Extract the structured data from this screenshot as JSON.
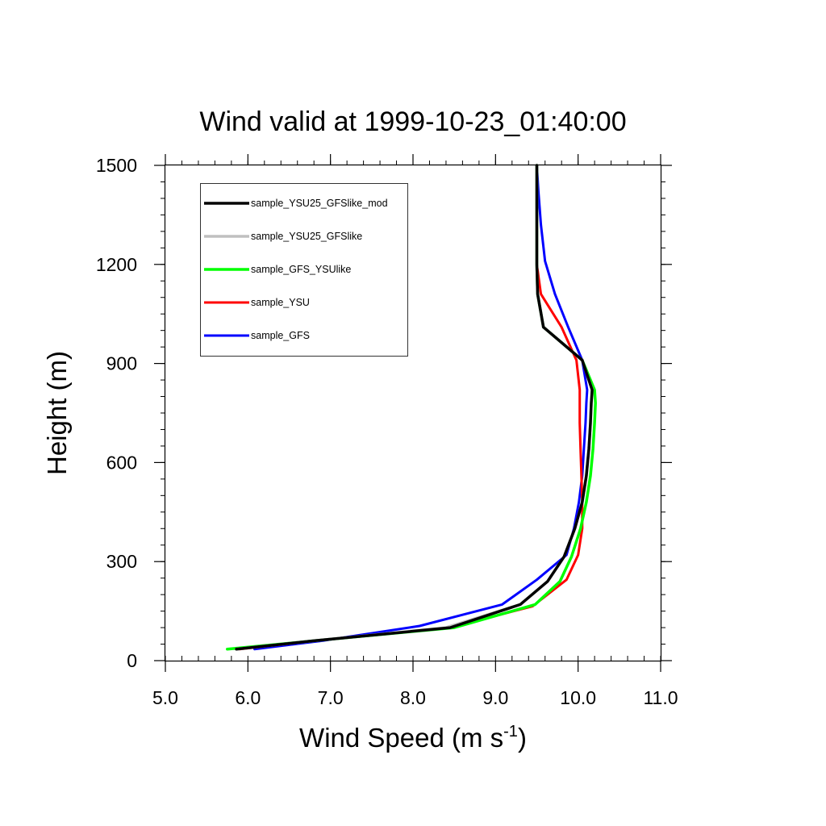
{
  "chart_data": {
    "type": "line",
    "title": "Wind valid at 1999-10-23_01:40:00",
    "xlabel": "Wind Speed (m s",
    "xlabel_sup": "-1",
    "xlabel_tail": ")",
    "ylabel": "Height (m)",
    "xlim": [
      5.0,
      11.0
    ],
    "ylim": [
      0,
      1500
    ],
    "xticks": [
      "5.0",
      "6.0",
      "7.0",
      "8.0",
      "9.0",
      "10.0",
      "11.0"
    ],
    "yticks": [
      "0",
      "300",
      "600",
      "900",
      "1200",
      "1500"
    ],
    "grid": false,
    "legend_position": "top-left",
    "series": [
      {
        "name": "sample_YSU25_GFSlike_mod",
        "color": "#000000",
        "width": 3.5,
        "x": [
          5.86,
          6.8,
          8.45,
          9.3,
          9.63,
          9.83,
          9.96,
          10.05,
          10.1,
          10.13,
          10.15,
          10.16,
          10.17,
          10.05,
          9.58,
          9.51,
          9.5,
          9.5,
          9.5,
          9.5
        ],
        "y": [
          35,
          60,
          100,
          170,
          240,
          315,
          400,
          480,
          560,
          640,
          720,
          780,
          820,
          910,
          1010,
          1110,
          1200,
          1300,
          1400,
          1500
        ]
      },
      {
        "name": "sample_YSU25_GFSlike",
        "color": "#c0c0c0",
        "width": 3.5,
        "x": [
          5.86,
          6.8,
          8.4,
          9.3,
          9.63,
          9.83,
          9.96,
          10.05,
          10.1,
          10.13,
          10.15,
          10.16,
          10.17,
          10.05,
          9.58,
          9.51,
          9.5,
          9.5,
          9.5,
          9.5
        ],
        "y": [
          35,
          60,
          100,
          170,
          240,
          315,
          400,
          480,
          560,
          640,
          720,
          780,
          820,
          910,
          1010,
          1110,
          1200,
          1300,
          1400,
          1500
        ]
      },
      {
        "name": "sample_GFS_YSUlike",
        "color": "#00ff00",
        "width": 3.5,
        "x": [
          5.75,
          6.8,
          8.5,
          9.48,
          9.78,
          9.92,
          10.03,
          10.1,
          10.15,
          10.18,
          10.2,
          10.21,
          10.2,
          10.05,
          9.58,
          9.51,
          9.5,
          9.5,
          9.5,
          9.5
        ],
        "y": [
          35,
          60,
          100,
          170,
          240,
          315,
          400,
          480,
          560,
          640,
          720,
          780,
          820,
          910,
          1010,
          1110,
          1200,
          1300,
          1400,
          1500
        ]
      },
      {
        "name": "sample_YSU",
        "color": "#ff0000",
        "width": 3,
        "x": [
          5.9,
          6.8,
          8.45,
          9.45,
          9.86,
          10.0,
          10.05,
          10.05,
          10.04,
          10.03,
          10.02,
          10.02,
          10.02,
          9.98,
          9.8,
          9.55,
          9.5,
          9.5,
          9.5,
          9.5
        ],
        "y": [
          35,
          60,
          100,
          165,
          245,
          320,
          400,
          480,
          560,
          640,
          720,
          780,
          820,
          910,
          1010,
          1110,
          1200,
          1300,
          1400,
          1500
        ]
      },
      {
        "name": "sample_GFS",
        "color": "#0000ff",
        "width": 3,
        "x": [
          6.08,
          6.9,
          8.08,
          9.08,
          9.5,
          9.86,
          9.95,
          10.01,
          10.05,
          10.07,
          10.09,
          10.1,
          10.11,
          10.05,
          9.88,
          9.72,
          9.6,
          9.55,
          9.52,
          9.5
        ],
        "y": [
          35,
          60,
          105,
          170,
          245,
          320,
          400,
          480,
          560,
          640,
          720,
          780,
          820,
          910,
          1010,
          1110,
          1210,
          1320,
          1420,
          1500
        ]
      }
    ]
  }
}
